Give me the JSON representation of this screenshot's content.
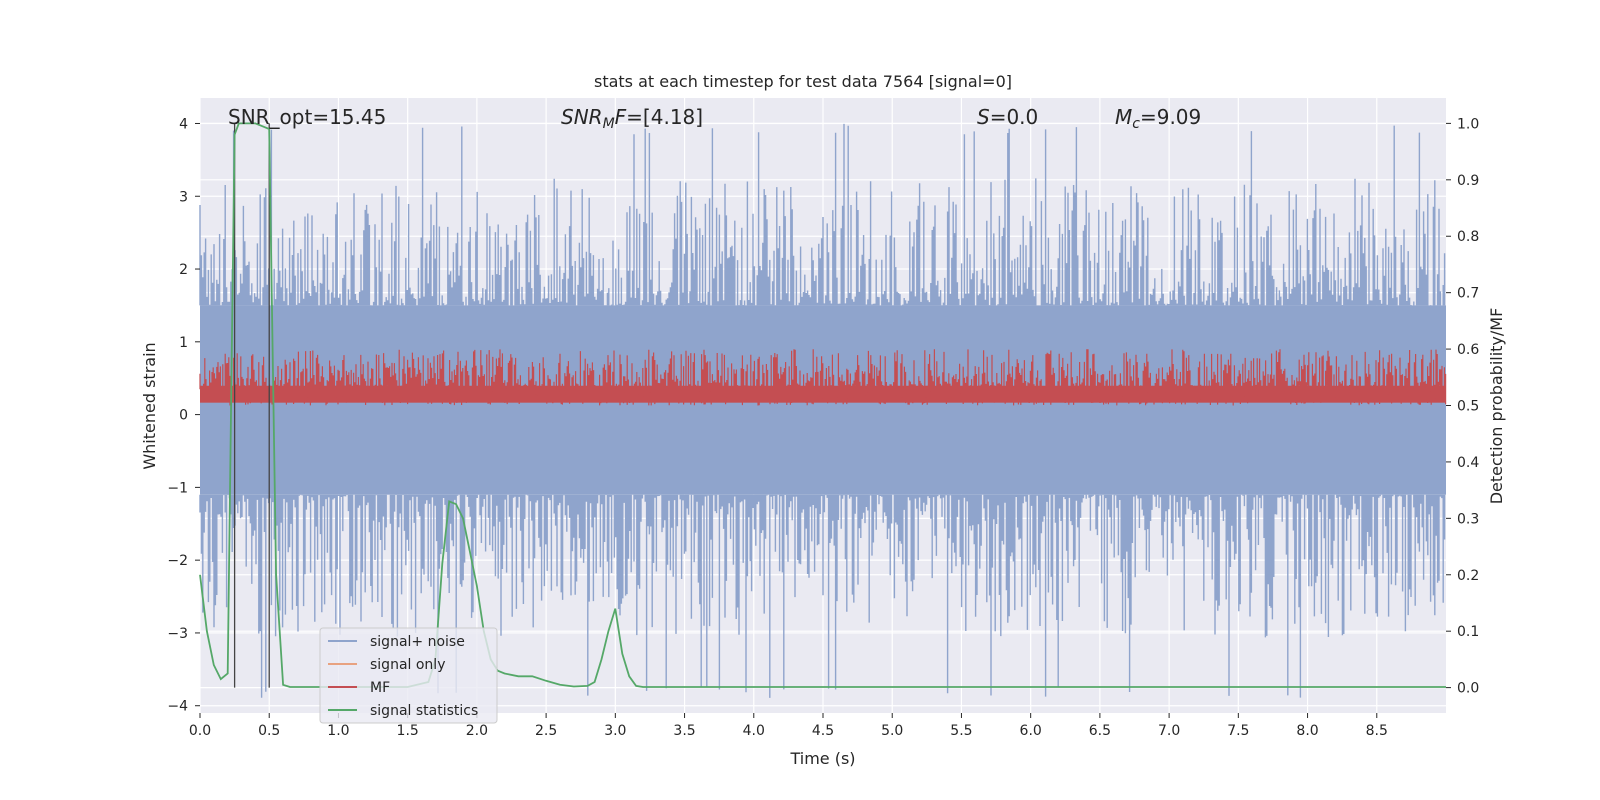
{
  "chart_data": {
    "type": "line",
    "title": "stats at each timestep for test data 7564 [signal=0]",
    "xlabel": "Time (s)",
    "ylabel_left": "Whitened strain",
    "ylabel_right": "Detection probability/MF",
    "xlim": [
      0,
      9.0
    ],
    "ylim_left": [
      -4.1,
      4.35
    ],
    "ylim_right": [
      -0.045,
      1.045
    ],
    "xticks": [
      "0.0",
      "0.5",
      "1.0",
      "1.5",
      "2.0",
      "2.5",
      "3.0",
      "3.5",
      "4.0",
      "4.5",
      "5.0",
      "5.5",
      "6.0",
      "6.5",
      "7.0",
      "7.5",
      "8.0",
      "8.5"
    ],
    "yticks_left": [
      "4",
      "3",
      "2",
      "1",
      "0",
      "−1",
      "−2",
      "−3",
      "−4"
    ],
    "yticks_right": [
      "1.0",
      "0.9",
      "0.8",
      "0.7",
      "0.6",
      "0.5",
      "0.4",
      "0.3",
      "0.2",
      "0.1",
      "0.0"
    ],
    "grid": true,
    "legend_position": "lower-left",
    "annotations": {
      "snr_opt": "SNR_opt=15.45",
      "snr_mf_label": "SNR",
      "snr_mf_sub": "M",
      "snr_mf_f": "F",
      "snr_mf_value": "=[4.18]",
      "s_label": "S",
      "s_value": "=0.0",
      "mc_label": "M",
      "mc_sub": "c",
      "mc_value": "=9.09"
    },
    "vertical_markers_x": [
      0.25,
      0.5
    ],
    "noise_envelope_left": {
      "upper": 1.5,
      "lower": -1.1,
      "peak_upper": 4.0,
      "peak_lower": -3.9
    },
    "mf_band_right": {
      "low": 0.5,
      "high": 0.6,
      "peak": 0.615
    },
    "series": [
      {
        "name": "signal+ noise",
        "color": "#8fa4cc"
      },
      {
        "name": "signal only",
        "color": "#e8a280"
      },
      {
        "name": "MF",
        "color": "#c44e52"
      },
      {
        "name": "signal statistics",
        "color": "#55a868",
        "axis": "right",
        "x": [
          0,
          0.05,
          0.1,
          0.15,
          0.2,
          0.23,
          0.25,
          0.28,
          0.3,
          0.35,
          0.4,
          0.45,
          0.5,
          0.55,
          0.6,
          0.65,
          0.7,
          1.0,
          1.5,
          1.65,
          1.7,
          1.75,
          1.8,
          1.85,
          1.9,
          1.95,
          2.0,
          2.05,
          2.1,
          2.15,
          2.2,
          2.3,
          2.4,
          2.5,
          2.6,
          2.7,
          2.8,
          2.85,
          2.9,
          2.95,
          3.0,
          3.05,
          3.1,
          3.15,
          3.2,
          4.0,
          5.0,
          6.0,
          7.0,
          8.0,
          9.0
        ],
        "y": [
          0.2,
          0.1,
          0.04,
          0.015,
          0.025,
          0.6,
          0.98,
          1.0,
          1.0,
          1.0,
          1.0,
          0.995,
          0.99,
          0.2,
          0.005,
          0.001,
          0.001,
          0.001,
          0.001,
          0.01,
          0.05,
          0.22,
          0.33,
          0.325,
          0.3,
          0.24,
          0.18,
          0.1,
          0.05,
          0.03,
          0.025,
          0.02,
          0.02,
          0.012,
          0.005,
          0.002,
          0.003,
          0.01,
          0.05,
          0.1,
          0.14,
          0.06,
          0.02,
          0.003,
          0.001,
          0.001,
          0.001,
          0.001,
          0.001,
          0.001,
          0.001
        ]
      }
    ]
  }
}
